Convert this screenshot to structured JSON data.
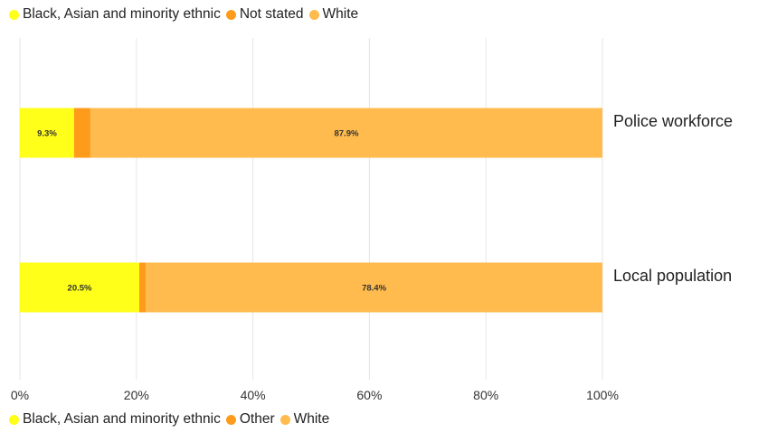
{
  "chart_data": {
    "type": "bar",
    "orientation": "horizontal",
    "stacked": true,
    "categories": [
      "Police workforce",
      "Local population"
    ],
    "series": [
      {
        "name": "Black, Asian and minority ethnic",
        "color": "#ffff1a",
        "values": [
          9.3,
          20.5
        ],
        "labels": [
          "9.3%",
          "20.5%"
        ]
      },
      {
        "name": "Not stated / Other",
        "color": "#ff9b1a",
        "values": [
          2.8,
          1.1
        ],
        "labels": [
          "",
          ""
        ]
      },
      {
        "name": "White",
        "color": "#ffbb4d",
        "values": [
          87.9,
          78.4
        ],
        "labels": [
          "87.9%",
          "78.4%"
        ]
      }
    ],
    "xlim": [
      0,
      100
    ],
    "xticks": [
      0,
      20,
      40,
      60,
      80,
      100
    ],
    "xtick_labels": [
      "0%",
      "20%",
      "40%",
      "60%",
      "80%",
      "100%"
    ],
    "grid": "vertical",
    "category_label_position": "right"
  },
  "legend_top": [
    {
      "label": "Black, Asian and minority ethnic",
      "color": "#ffff1a"
    },
    {
      "label": "Not stated",
      "color": "#ff9b1a"
    },
    {
      "label": "White",
      "color": "#ffbb4d"
    }
  ],
  "legend_bottom": [
    {
      "label": "Black, Asian and minority ethnic",
      "color": "#ffff1a"
    },
    {
      "label": "Other",
      "color": "#ff9b1a"
    },
    {
      "label": "White",
      "color": "#ffbb4d"
    }
  ]
}
